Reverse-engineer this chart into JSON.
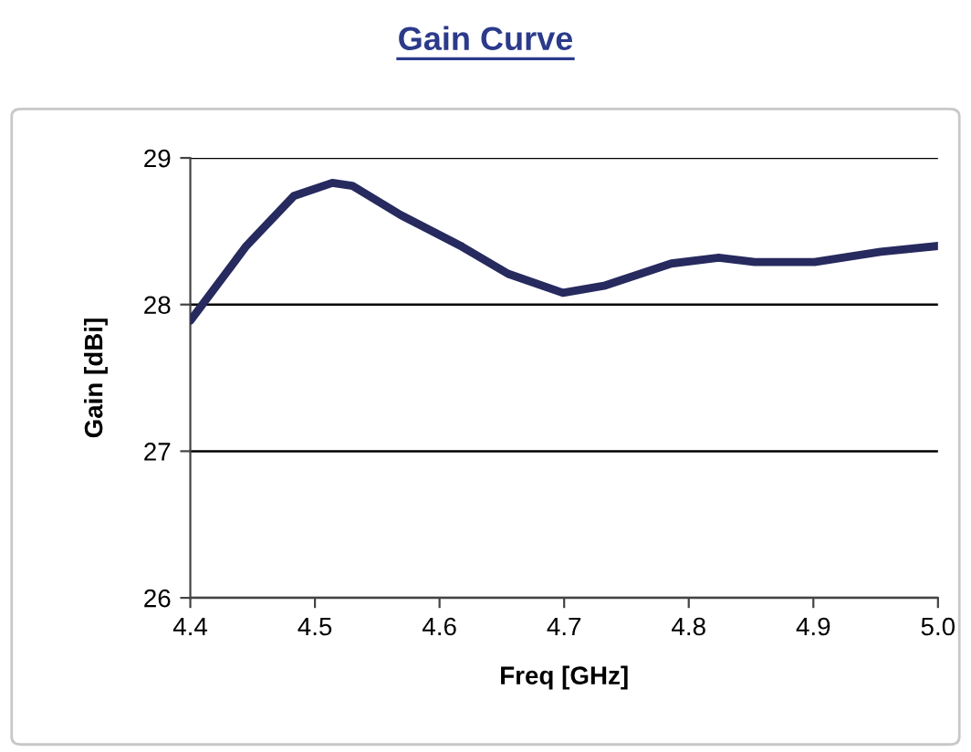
{
  "chart_data": {
    "type": "line",
    "title": "Gain Curve",
    "xlabel": "Freq [GHz]",
    "ylabel": "Gain [dBi]",
    "series": [
      {
        "color": "#262a5e",
        "x": [
          4.4,
          4.445,
          4.483,
          4.514,
          4.53,
          4.569,
          4.617,
          4.655,
          4.699,
          4.733,
          4.786,
          4.824,
          4.853,
          4.901,
          4.954,
          5.0
        ],
        "values": [
          27.89,
          28.4,
          28.74,
          28.83,
          28.81,
          28.61,
          28.4,
          28.21,
          28.08,
          28.13,
          28.28,
          28.32,
          28.29,
          28.29,
          28.36,
          28.4
        ]
      }
    ],
    "xlim": [
      4.4,
      5.0
    ],
    "xticks": [
      4.4,
      4.5,
      4.6,
      4.7,
      4.8,
      4.9,
      {
        "value": 5.0,
        "label": "5.0"
      }
    ],
    "ylim": [
      26,
      29
    ],
    "yticks": [
      26,
      27,
      28,
      29
    ],
    "grid": "y",
    "marker": "none",
    "line_style": "solid"
  }
}
